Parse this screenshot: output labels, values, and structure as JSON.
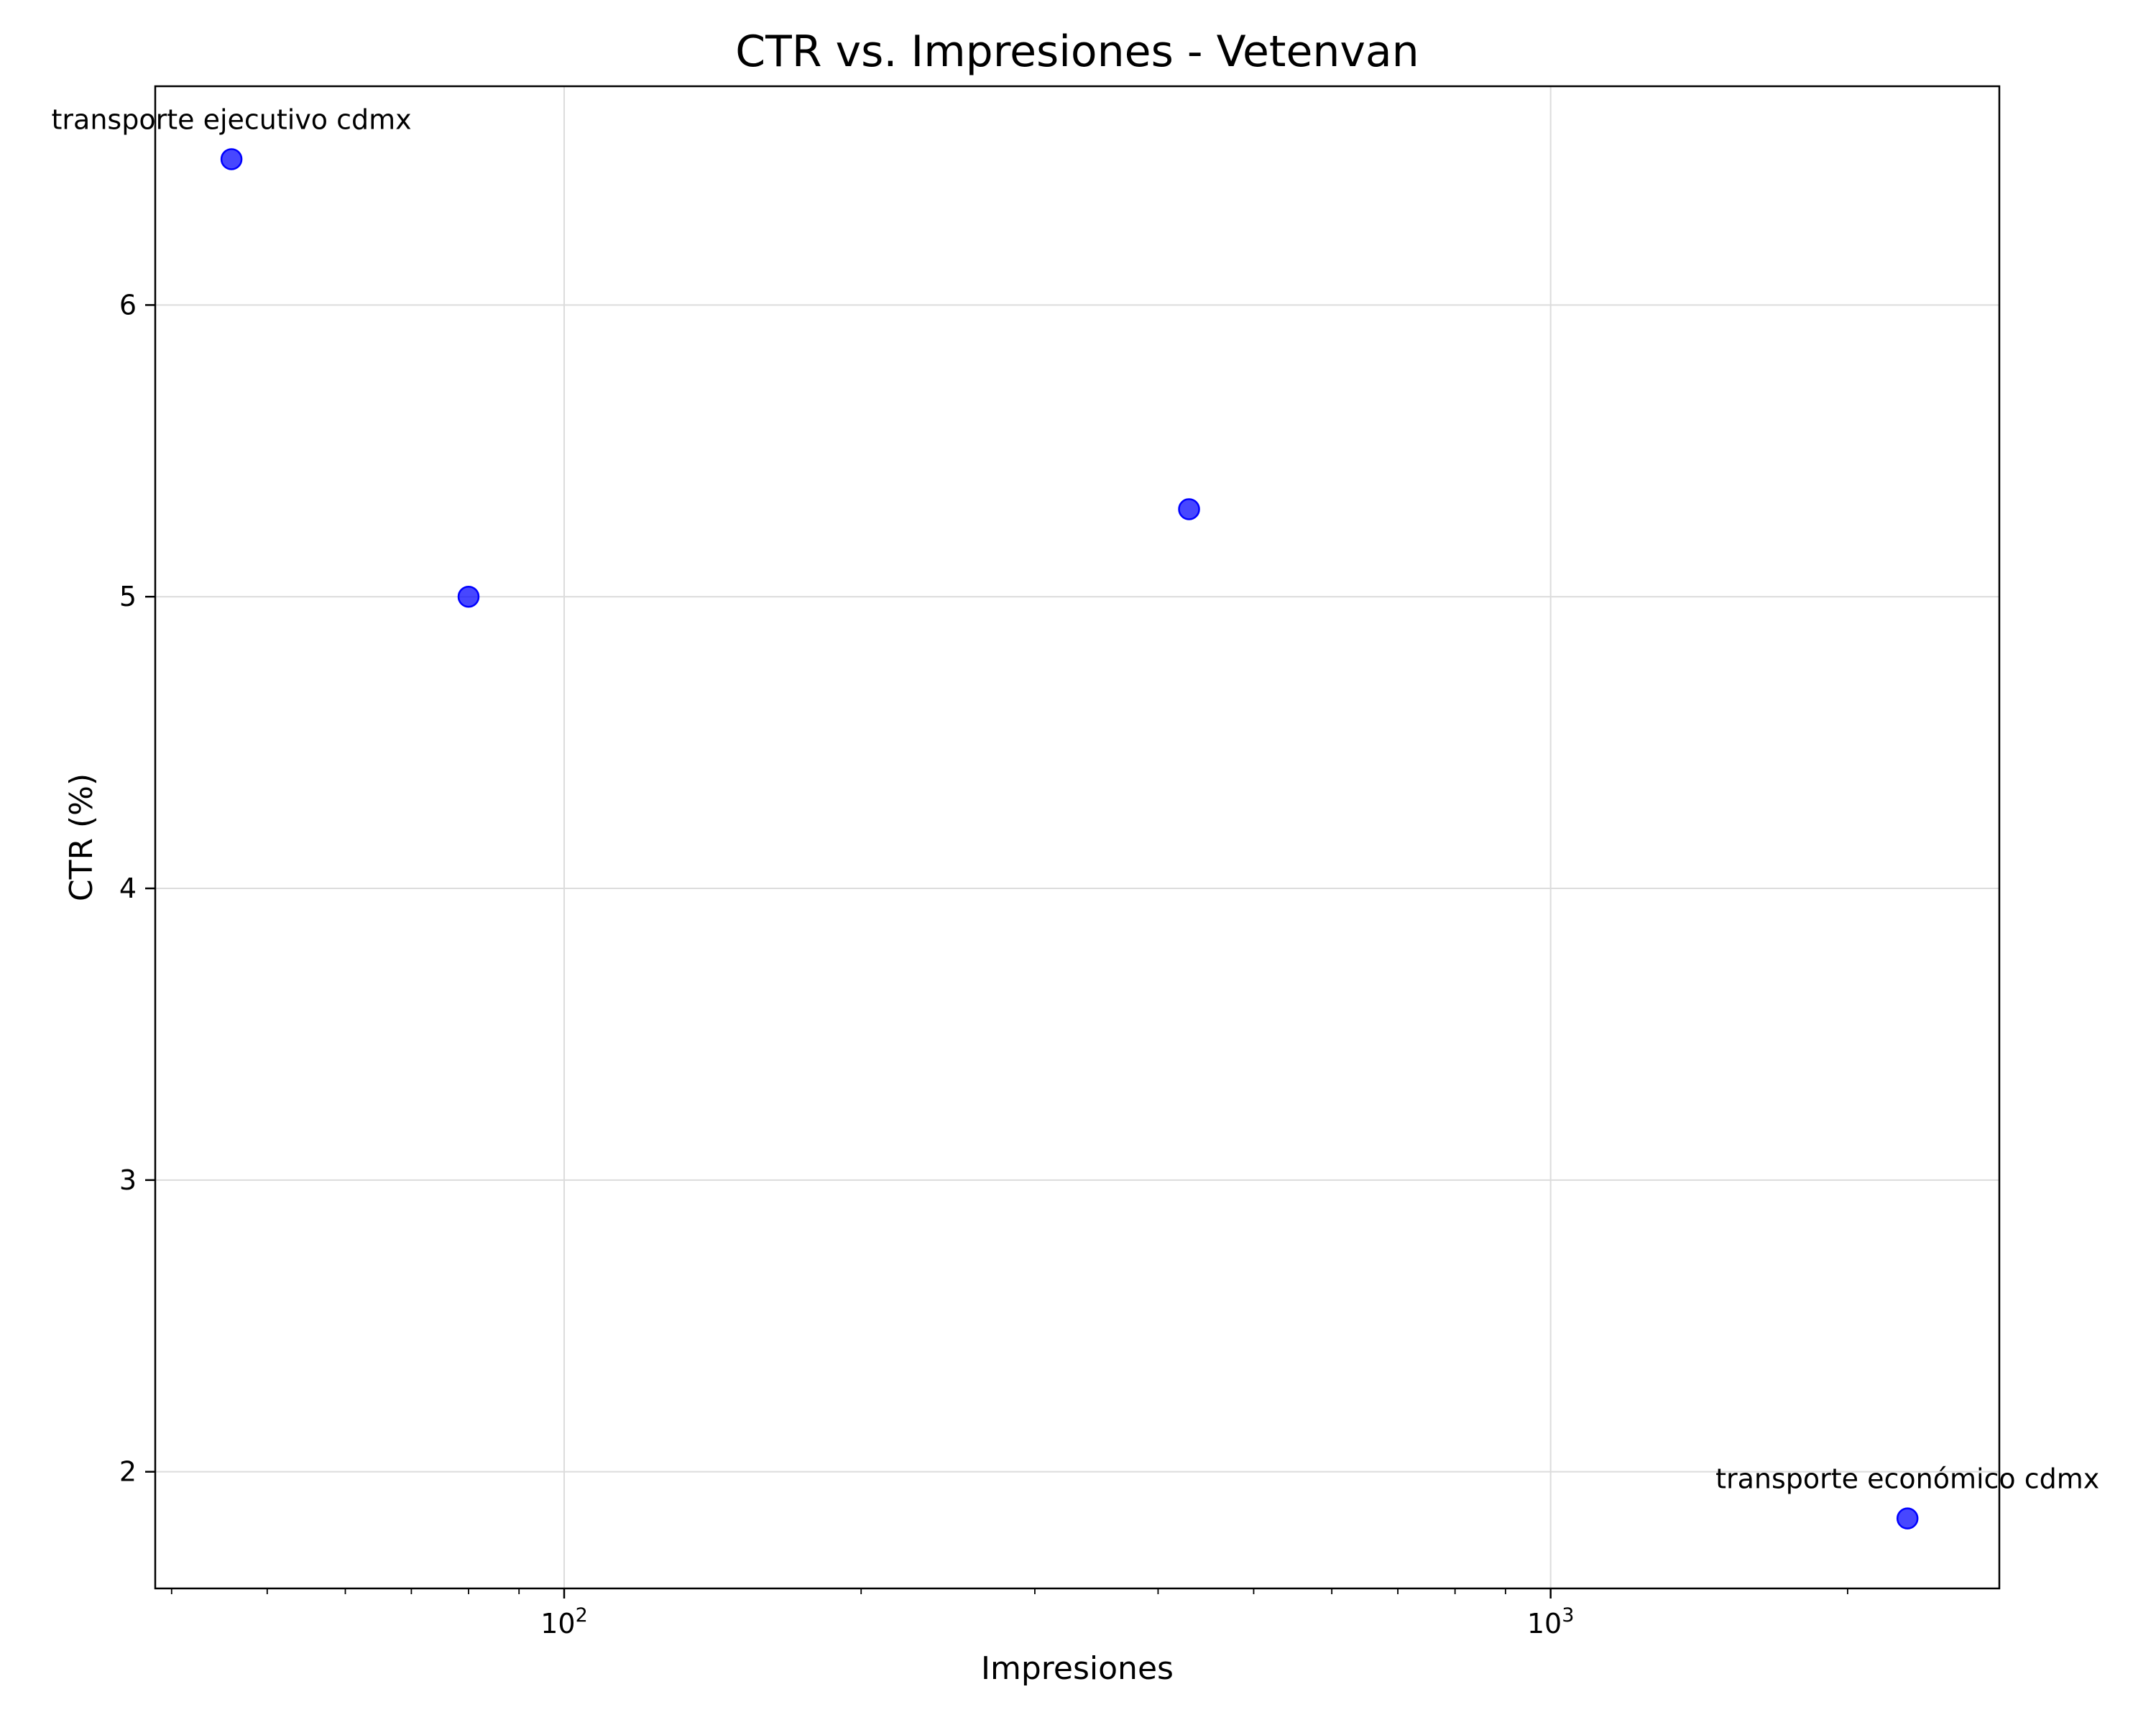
{
  "chart_data": {
    "type": "scatter",
    "title": "CTR vs. Impresiones - Vetenvan",
    "xlabel": "Impresiones",
    "ylabel": "CTR (%)",
    "xscale": "log",
    "xlim": [
      38.5,
      2850
    ],
    "ylim": [
      1.6,
      6.75
    ],
    "grid": true,
    "point_color": "#0000ff",
    "x_ticks": [
      {
        "value": 100,
        "base": "10",
        "exp": "2"
      },
      {
        "value": 1000,
        "base": "10",
        "exp": "3"
      }
    ],
    "y_ticks": [
      {
        "value": 2,
        "label": "2"
      },
      {
        "value": 3,
        "label": "3"
      },
      {
        "value": 4,
        "label": "4"
      },
      {
        "value": 5,
        "label": "5"
      },
      {
        "value": 6,
        "label": "6"
      }
    ],
    "points": [
      {
        "x": 46,
        "y": 6.5,
        "label": "transporte ejecutivo cdmx"
      },
      {
        "x": 80,
        "y": 5.0,
        "label": ""
      },
      {
        "x": 430,
        "y": 5.3,
        "label": ""
      },
      {
        "x": 2300,
        "y": 1.84,
        "label": "transporte económico cdmx"
      }
    ]
  }
}
